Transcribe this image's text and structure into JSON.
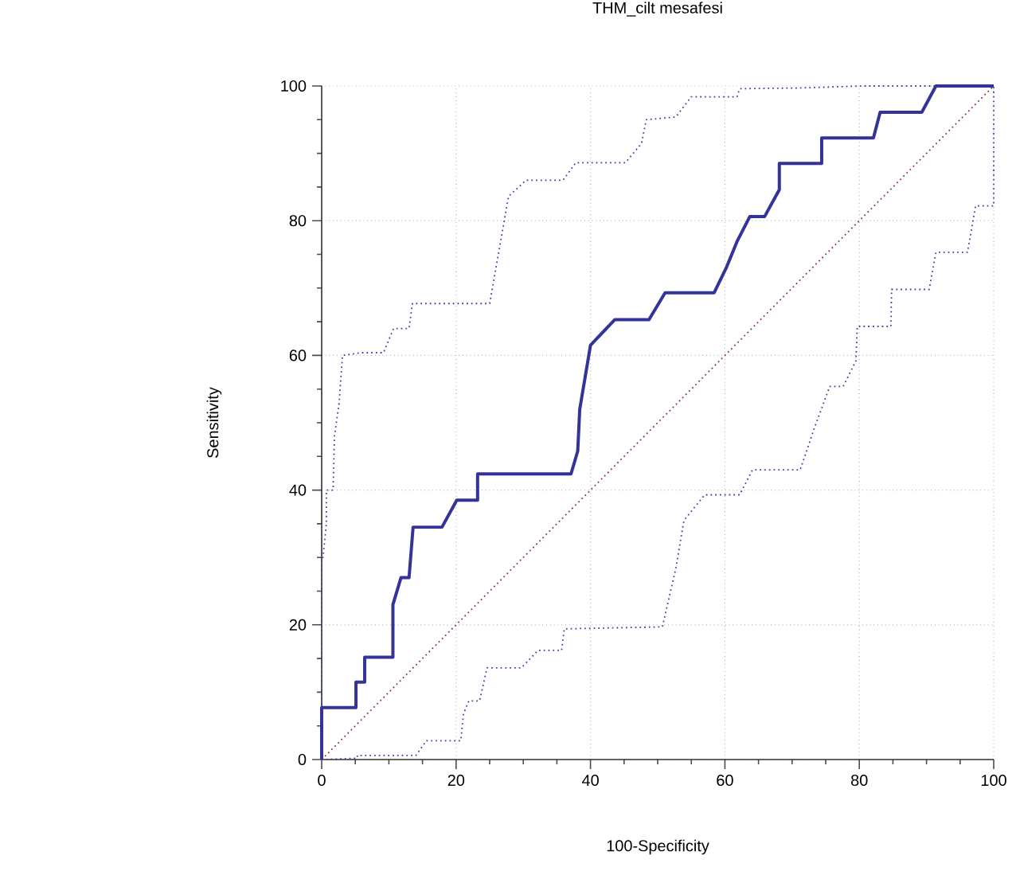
{
  "chart_data": {
    "type": "line",
    "title": "THM_cilt mesafesi",
    "xlabel": "100-Specificity",
    "ylabel": "Sensitivity",
    "xlim": [
      0,
      100
    ],
    "ylim": [
      0,
      100
    ],
    "xticks": [
      0,
      20,
      40,
      60,
      80,
      100
    ],
    "yticks": [
      0,
      20,
      40,
      60,
      80,
      100
    ],
    "grid": true,
    "series": [
      {
        "color": "#993333",
        "line_style": "dotted",
        "x": [
          0,
          100
        ],
        "values": [
          0,
          100
        ]
      },
      {
        "color": "#4040b0",
        "line_style": "dotted",
        "x": [
          0,
          0,
          0.2,
          0.7,
          0.7,
          1.7,
          1.9,
          2.6,
          3.1,
          5.9,
          9.2,
          10.7,
          13,
          13.5,
          25,
          27.8,
          30.4,
          35.9,
          37.8,
          45.2,
          47.6,
          48.3,
          52.7,
          55,
          61.8,
          62.2,
          70.9,
          80.5,
          100
        ],
        "values": [
          0,
          30,
          30,
          35,
          40,
          40,
          48,
          53,
          60,
          60.4,
          60.4,
          64,
          64,
          67.7,
          67.7,
          83.6,
          86,
          86,
          88.6,
          88.6,
          91.5,
          95,
          95.4,
          98.4,
          98.4,
          99.6,
          99.7,
          100,
          100
        ]
      },
      {
        "color": "#4040b0",
        "line_style": "dotted",
        "x": [
          0,
          5.3,
          5.3,
          14,
          15.6,
          20.7,
          21.1,
          21.9,
          23.5,
          24.6,
          29.7,
          32.2,
          35.7,
          36.1,
          50.7,
          52.7,
          53.9,
          57,
          62.2,
          64.1,
          71.2,
          73.2,
          75.6,
          77.6,
          79.5,
          79.7,
          84.7,
          84.8,
          90.4,
          91.4,
          96.1,
          97.3,
          100,
          100
        ],
        "values": [
          0,
          0.2,
          0.6,
          0.6,
          2.8,
          2.8,
          6.8,
          8.7,
          8.7,
          13.6,
          13.6,
          16.2,
          16.2,
          19.4,
          19.7,
          28.4,
          35.5,
          39.3,
          39.3,
          43,
          43,
          48.9,
          55.4,
          55.4,
          59.2,
          64.3,
          64.3,
          69.8,
          69.8,
          75.3,
          75.3,
          82.2,
          82.2,
          100
        ]
      },
      {
        "color": "#333399",
        "line_style": "solid",
        "x": [
          0,
          0,
          5.1,
          5.1,
          6.4,
          6.4,
          10.6,
          10.6,
          11.8,
          13,
          13.6,
          17.9,
          20.1,
          23.2,
          23.2,
          37.1,
          38.1,
          38.4,
          40,
          43.6,
          48.7,
          51.1,
          58.4,
          60.2,
          61.8,
          63.7,
          65.9,
          68.1,
          68.1,
          74.4,
          74.4,
          82.1,
          83.1,
          89.3,
          91.4,
          100
        ],
        "values": [
          0,
          7.7,
          7.7,
          11.5,
          11.5,
          15.2,
          15.2,
          23,
          27,
          27,
          34.5,
          34.5,
          38.5,
          38.5,
          42.4,
          42.4,
          45.8,
          52,
          61.5,
          65.3,
          65.3,
          69.3,
          69.3,
          73,
          76.9,
          80.6,
          80.6,
          84.6,
          88.5,
          88.5,
          92.3,
          92.3,
          96.1,
          96.1,
          100,
          100
        ]
      }
    ]
  }
}
